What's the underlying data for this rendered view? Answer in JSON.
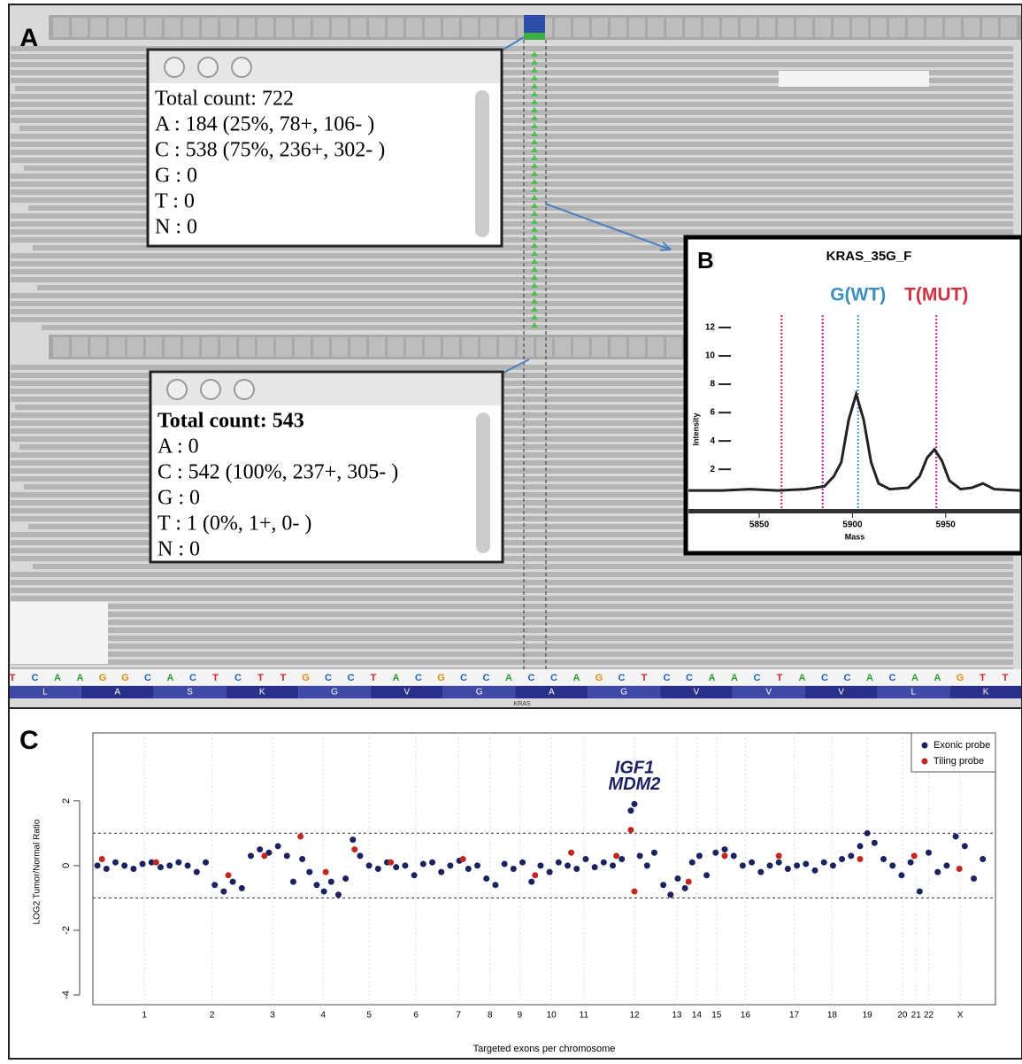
{
  "panel_a": {
    "label": "A",
    "popup_top": [
      "Total count: 722",
      "A : 184 (25%, 78+, 106- )",
      "C : 538 (75%, 236+, 302- )",
      "G : 0",
      "T : 0",
      "N : 0"
    ],
    "popup_bottom": [
      "Total count: 543",
      "A : 0",
      "C : 542 (100%, 237+, 305- )",
      "G : 0",
      "T : 1 (0%, 1+, 0- )",
      "N : 0"
    ],
    "sequence": [
      "T",
      "C",
      "A",
      "A",
      "G",
      "G",
      "C",
      "A",
      "C",
      "T",
      "C",
      "T",
      "T",
      "G",
      "C",
      "C",
      "T",
      "A",
      "C",
      "G",
      "C",
      "C",
      "A",
      "C",
      "C",
      "A",
      "G",
      "C",
      "T",
      "C",
      "C",
      "A",
      "A",
      "C",
      "T",
      "A",
      "C",
      "C",
      "A",
      "C",
      "A",
      "A",
      "G",
      "T",
      "T"
    ],
    "amino_acids": [
      "L",
      "A",
      "S",
      "K",
      "G",
      "V",
      "G",
      "A",
      "G",
      "V",
      "V",
      "V",
      "L",
      "K"
    ],
    "gene": "KRAS"
  },
  "chart_data": [
    {
      "type": "line",
      "panel_label": "B",
      "title": "KRAS_35G_F",
      "x_label": "Mass",
      "y_label": "Intensity",
      "x": [
        5812,
        5830,
        5845,
        5860,
        5875,
        5885,
        5890,
        5894,
        5898,
        5902,
        5906,
        5910,
        5914,
        5920,
        5930,
        5936,
        5940,
        5944,
        5948,
        5952,
        5958,
        5964,
        5970,
        5976,
        5990
      ],
      "values": [
        0.5,
        0.5,
        0.6,
        0.5,
        0.6,
        0.8,
        1.5,
        2.5,
        5.5,
        7.3,
        5.5,
        2.5,
        1.0,
        0.6,
        0.7,
        1.5,
        2.8,
        3.4,
        2.6,
        1.2,
        0.6,
        0.7,
        1.0,
        0.6,
        0.5
      ],
      "color": "#222222",
      "xlim": [
        5812,
        5990
      ],
      "ylim": [
        -0.8,
        13.5
      ],
      "xticks": [
        5850,
        5900,
        5950
      ],
      "yticks": [
        2,
        4,
        6,
        8,
        10,
        12
      ],
      "vlines": [
        {
          "value": 5862,
          "color": "#e0204a"
        },
        {
          "value": 5884,
          "color": "#d0207a"
        },
        {
          "value": 5903,
          "color": "#33a0d0"
        },
        {
          "value": 5945,
          "color": "#d0207a"
        }
      ],
      "annotations": [
        {
          "text": "G(WT)",
          "x": 5903,
          "color": "#3a8fc0"
        },
        {
          "text": "T(MUT)",
          "x": 5945,
          "color": "#d03040"
        }
      ]
    },
    {
      "type": "scatter",
      "panel_label": "C",
      "x_label": "Targeted exons per chromosome",
      "y_label": "LOG2 Tumor/Normal Ratio",
      "xlim": [
        0,
        1000
      ],
      "ylim": [
        -4.3,
        4.1
      ],
      "yticks": [
        -4,
        -2,
        0,
        2
      ],
      "xticks": [
        {
          "value": 57,
          "label": "1"
        },
        {
          "value": 132,
          "label": "2"
        },
        {
          "value": 199,
          "label": "3"
        },
        {
          "value": 255,
          "label": "4"
        },
        {
          "value": 306,
          "label": "5"
        },
        {
          "value": 358,
          "label": "6"
        },
        {
          "value": 405,
          "label": "7"
        },
        {
          "value": 440,
          "label": "8"
        },
        {
          "value": 473,
          "label": "9"
        },
        {
          "value": 508,
          "label": "10"
        },
        {
          "value": 544,
          "label": "11"
        },
        {
          "value": 600,
          "label": "12"
        },
        {
          "value": 647,
          "label": "13"
        },
        {
          "value": 669,
          "label": "14"
        },
        {
          "value": 691,
          "label": "15"
        },
        {
          "value": 723,
          "label": "16"
        },
        {
          "value": 777,
          "label": "17"
        },
        {
          "value": 819,
          "label": "18"
        },
        {
          "value": 858,
          "label": "19"
        },
        {
          "value": 897,
          "label": "20"
        },
        {
          "value": 912,
          "label": "21"
        },
        {
          "value": 926,
          "label": "22"
        },
        {
          "value": 961,
          "label": "X"
        }
      ],
      "hlines": [
        1,
        -1
      ],
      "legend": "top-right",
      "annotations": [
        {
          "text": "IGF1",
          "x": 600,
          "y": 3.0
        },
        {
          "text": "MDM2",
          "x": 600,
          "y": 2.5
        }
      ],
      "series": [
        {
          "name": "Exonic probe",
          "color": "#1a2360",
          "x": [
            5,
            15,
            25,
            35,
            45,
            55,
            65,
            75,
            85,
            95,
            105,
            115,
            125,
            135,
            145,
            155,
            165,
            175,
            185,
            195,
            205,
            215,
            222,
            232,
            240,
            248,
            256,
            264,
            272,
            280,
            288,
            296,
            306,
            316,
            326,
            336,
            346,
            356,
            366,
            376,
            386,
            396,
            406,
            416,
            426,
            436,
            446,
            456,
            466,
            476,
            486,
            496,
            506,
            516,
            526,
            536,
            546,
            556,
            566,
            576,
            586,
            596,
            600,
            606,
            614,
            622,
            632,
            640,
            648,
            656,
            664,
            672,
            680,
            690,
            700,
            710,
            720,
            730,
            740,
            750,
            760,
            770,
            780,
            790,
            800,
            810,
            820,
            830,
            840,
            850,
            858,
            866,
            876,
            886,
            896,
            906,
            916,
            926,
            936,
            946,
            956,
            966,
            976,
            986
          ],
          "values": [
            0.0,
            -0.1,
            0.1,
            0.0,
            -0.1,
            0.05,
            0.1,
            -0.05,
            0.0,
            0.1,
            0.0,
            -0.2,
            0.1,
            -0.6,
            -0.8,
            -0.5,
            -0.7,
            0.3,
            0.5,
            0.4,
            0.6,
            0.3,
            -0.5,
            0.2,
            -0.2,
            -0.6,
            -0.8,
            -0.5,
            -0.9,
            -0.4,
            0.8,
            0.3,
            0.0,
            -0.1,
            0.1,
            -0.05,
            0.0,
            -0.3,
            0.05,
            0.1,
            -0.2,
            0.0,
            0.15,
            -0.1,
            0.0,
            -0.4,
            -0.6,
            0.05,
            -0.1,
            0.1,
            -0.5,
            0.0,
            -0.2,
            0.1,
            0.0,
            -0.1,
            0.2,
            -0.05,
            0.1,
            0.0,
            0.2,
            1.7,
            1.9,
            0.3,
            0.0,
            0.4,
            -0.6,
            -0.9,
            -0.4,
            -0.7,
            0.1,
            0.3,
            -0.3,
            0.4,
            0.5,
            0.3,
            0.0,
            0.1,
            -0.2,
            0.0,
            0.1,
            -0.1,
            0.0,
            0.05,
            -0.15,
            0.1,
            0.0,
            0.2,
            0.3,
            0.6,
            1.0,
            0.7,
            0.2,
            0.0,
            -0.3,
            0.1,
            -0.8,
            0.4,
            -0.2,
            0.0,
            0.9,
            0.6,
            -0.4,
            0.2
          ]
        },
        {
          "name": "Tiling probe",
          "color": "#c0281e",
          "x": [
            10,
            70,
            150,
            190,
            230,
            258,
            290,
            330,
            410,
            490,
            530,
            580,
            596,
            600,
            660,
            700,
            760,
            850,
            910,
            960
          ],
          "values": [
            0.2,
            0.1,
            -0.3,
            0.3,
            0.9,
            -0.2,
            0.5,
            0.1,
            0.2,
            -0.3,
            0.4,
            0.3,
            1.1,
            -0.8,
            -0.5,
            0.3,
            0.3,
            0.2,
            0.3,
            -0.1
          ]
        }
      ]
    }
  ]
}
